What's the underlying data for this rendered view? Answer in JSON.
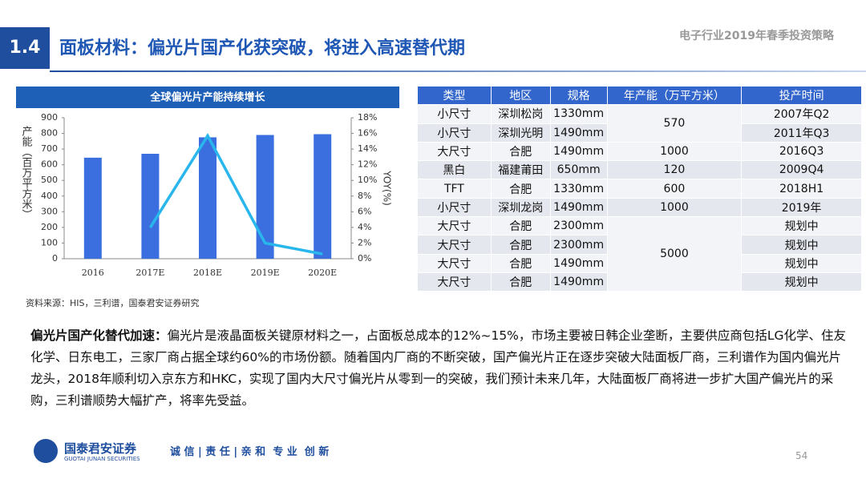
{
  "header": {
    "section": "1.4",
    "title": "面板材料：偏光片国产化获突破，将进入高速替代期",
    "report": "电子行业2019年春季投资策略"
  },
  "chart_data": {
    "type": "bar",
    "title": "全球偏光片产能持续增长",
    "ylabel": "产能（百万平方米）",
    "y2label": "YOY(%)",
    "categories": [
      "2016",
      "2017E",
      "2018E",
      "2019E",
      "2020E"
    ],
    "series": [
      {
        "type": "bar",
        "color": "#3b6fe0",
        "values": [
          645,
          670,
          775,
          790,
          795
        ]
      },
      {
        "type": "line",
        "axis": "y2",
        "color": "#29b6ec",
        "values": [
          null,
          4,
          15.7,
          2,
          0.6
        ]
      }
    ],
    "ylim": [
      0,
      900
    ],
    "yticks": [
      0,
      100,
      200,
      300,
      400,
      500,
      600,
      700,
      800,
      900
    ],
    "y2lim": [
      0,
      18
    ],
    "y2ticks": [
      {
        "value": 0,
        "label": "0%"
      },
      {
        "value": 2,
        "label": "2%"
      },
      {
        "value": 4,
        "label": "4%"
      },
      {
        "value": 6,
        "label": "6%"
      },
      {
        "value": 8,
        "label": "8%"
      },
      {
        "value": 10,
        "label": "10%"
      },
      {
        "value": 12,
        "label": "12%"
      },
      {
        "value": 14,
        "label": "14%"
      },
      {
        "value": 16,
        "label": "16%"
      },
      {
        "value": 18,
        "label": "18%"
      }
    ]
  },
  "source": "资料来源：HIS，三利谱，国泰君安证券研究",
  "table": {
    "columns": [
      "类型",
      "地区",
      "规格",
      "年产能（万平方米）",
      "投产时间"
    ],
    "rows": [
      {
        "type": "小尺寸",
        "region": "深圳松岗",
        "spec": "1330mm",
        "capacity": "570",
        "date": "2007年Q2"
      },
      {
        "type": "小尺寸",
        "region": "深圳光明",
        "spec": "1490mm",
        "date": "2011年Q3"
      },
      {
        "type": "大尺寸",
        "region": "合肥",
        "spec": "1490mm",
        "capacity": "1000",
        "date": "2016Q3"
      },
      {
        "type": "黑白",
        "region": "福建莆田",
        "spec": "650mm",
        "capacity": "120",
        "date": "2009Q4"
      },
      {
        "type": "TFT",
        "region": "合肥",
        "spec": "1330mm",
        "capacity": "600",
        "date": "2018H1"
      },
      {
        "type": "小尺寸",
        "region": "深圳龙岗",
        "spec": "1490mm",
        "capacity": "1000",
        "date": "2019年"
      },
      {
        "type": "大尺寸",
        "region": "合肥",
        "spec": "2300mm",
        "capacity": "5000",
        "date": "规划中"
      },
      {
        "type": "大尺寸",
        "region": "合肥",
        "spec": "2300mm",
        "date": "规划中"
      },
      {
        "type": "大尺寸",
        "region": "合肥",
        "spec": "1490mm",
        "date": "规划中"
      },
      {
        "type": "大尺寸",
        "region": "合肥",
        "spec": "1490mm",
        "date": "规划中"
      }
    ]
  },
  "body": {
    "lead": "偏光片国产化替代加速：",
    "text": "偏光片是液晶面板关键原材料之一，占面板总成本的12%~15%，市场主要被日韩企业垄断，主要供应商包括LG化学、住友化学、日东电工，三家厂商占据全球约60%的市场份额。随着国内厂商的不断突破，国产偏光片正在逐步突破大陆面板厂商，三利谱作为国内偏光片龙头，2018年顺利切入京东方和HKC，实现了国内大尺寸偏光片从零到一的突破，我们预计未来几年，大陆面板厂商将进一步扩大国产偏光片的采购，三利谱顺势大幅扩产，将率先受益。"
  },
  "footer": {
    "company": "国泰君安证券",
    "company_en": "GUOTAI JUNAN SECURITIES",
    "slogan": "诚 信 | 责 任 | 亲 和  专 业  创 新",
    "page": "54"
  }
}
